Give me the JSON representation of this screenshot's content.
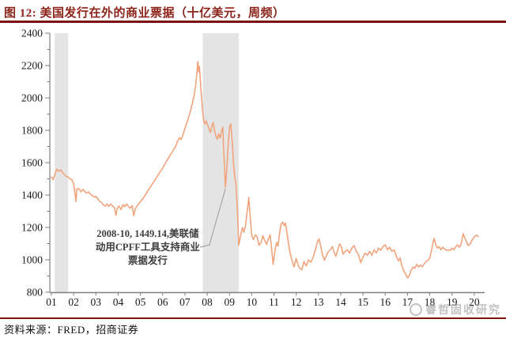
{
  "header": {
    "title": "图 12:  美国发行在外的商业票据（十亿美元，周频）"
  },
  "footer": {
    "source": "资料来源：FRED，招商证券"
  },
  "watermark": {
    "text": "睿哲固收研究"
  },
  "colors": {
    "title_red": "#8C231A",
    "rule_red": "#7C150D",
    "line": "#F1A47C",
    "recession_band": "#E4E4E4",
    "axis": "#7F7F7F",
    "tick_text": "#1A1A1A",
    "annotation_text": "#3E3E3E",
    "leader_line": "#9A9A9A"
  },
  "chart_data": {
    "type": "line",
    "title": "美国发行在外的商业票据（十亿美元，周频）",
    "xlabel": "",
    "ylabel": "",
    "ylim": [
      800,
      2400
    ],
    "xlim": [
      2001,
      2020.5
    ],
    "grid": false,
    "legend": false,
    "x_ticks": [
      "01",
      "02",
      "03",
      "04",
      "05",
      "06",
      "07",
      "08",
      "09",
      "10",
      "11",
      "12",
      "13",
      "14",
      "15",
      "16",
      "17",
      "18",
      "19",
      "20"
    ],
    "y_ticks": [
      800,
      1000,
      1200,
      1400,
      1600,
      1800,
      2000,
      2200,
      2400
    ],
    "y_minor_step": 100,
    "recession_bands": [
      [
        2001.15,
        2001.75
      ],
      [
        2007.8,
        2009.42
      ]
    ],
    "annotation": {
      "lines": [
        "2008-10, 1449.14,美联储",
        "动用CPFF工具支持商业",
        "票据发行"
      ],
      "point": [
        2008.82,
        1449.14
      ],
      "label_anchor": [
        2005.33,
        1141
      ]
    },
    "series": [
      {
        "name": "美国发行在外的商业票据",
        "points": [
          [
            2001.0,
            1512
          ],
          [
            2001.08,
            1495
          ],
          [
            2001.17,
            1535
          ],
          [
            2001.25,
            1560
          ],
          [
            2001.33,
            1548
          ],
          [
            2001.42,
            1556
          ],
          [
            2001.5,
            1540
          ],
          [
            2001.58,
            1528
          ],
          [
            2001.67,
            1515
          ],
          [
            2001.75,
            1512
          ],
          [
            2001.83,
            1500
          ],
          [
            2001.92,
            1495
          ],
          [
            2002.0,
            1468
          ],
          [
            2002.06,
            1415
          ],
          [
            2002.1,
            1360
          ],
          [
            2002.15,
            1440
          ],
          [
            2002.25,
            1438
          ],
          [
            2002.33,
            1420
          ],
          [
            2002.42,
            1435
          ],
          [
            2002.5,
            1422
          ],
          [
            2002.58,
            1412
          ],
          [
            2002.67,
            1420
          ],
          [
            2002.75,
            1405
          ],
          [
            2002.83,
            1398
          ],
          [
            2002.92,
            1388
          ],
          [
            2003.0,
            1392
          ],
          [
            2003.08,
            1378
          ],
          [
            2003.17,
            1360
          ],
          [
            2003.25,
            1355
          ],
          [
            2003.33,
            1340
          ],
          [
            2003.42,
            1332
          ],
          [
            2003.5,
            1345
          ],
          [
            2003.58,
            1330
          ],
          [
            2003.67,
            1345
          ],
          [
            2003.75,
            1332
          ],
          [
            2003.83,
            1322
          ],
          [
            2003.9,
            1275
          ],
          [
            2003.96,
            1318
          ],
          [
            2004.04,
            1332
          ],
          [
            2004.13,
            1310
          ],
          [
            2004.21,
            1340
          ],
          [
            2004.29,
            1328
          ],
          [
            2004.38,
            1345
          ],
          [
            2004.46,
            1330
          ],
          [
            2004.54,
            1318
          ],
          [
            2004.63,
            1335
          ],
          [
            2004.7,
            1272
          ],
          [
            2004.78,
            1318
          ],
          [
            2004.88,
            1338
          ],
          [
            2004.96,
            1352
          ],
          [
            2005.08,
            1372
          ],
          [
            2005.21,
            1398
          ],
          [
            2005.33,
            1425
          ],
          [
            2005.46,
            1452
          ],
          [
            2005.58,
            1478
          ],
          [
            2005.71,
            1505
          ],
          [
            2005.83,
            1532
          ],
          [
            2005.96,
            1558
          ],
          [
            2006.08,
            1588
          ],
          [
            2006.21,
            1618
          ],
          [
            2006.33,
            1645
          ],
          [
            2006.46,
            1672
          ],
          [
            2006.58,
            1700
          ],
          [
            2006.67,
            1732
          ],
          [
            2006.75,
            1755
          ],
          [
            2006.83,
            1742
          ],
          [
            2006.92,
            1775
          ],
          [
            2007.0,
            1812
          ],
          [
            2007.08,
            1845
          ],
          [
            2007.17,
            1880
          ],
          [
            2007.25,
            1920
          ],
          [
            2007.33,
            1965
          ],
          [
            2007.42,
            2020
          ],
          [
            2007.48,
            2075
          ],
          [
            2007.53,
            2140
          ],
          [
            2007.58,
            2225
          ],
          [
            2007.62,
            2160
          ],
          [
            2007.65,
            2195
          ],
          [
            2007.7,
            2090
          ],
          [
            2007.75,
            2000
          ],
          [
            2007.8,
            1915
          ],
          [
            2007.85,
            1855
          ],
          [
            2007.9,
            1838
          ],
          [
            2007.96,
            1858
          ],
          [
            2008.0,
            1842
          ],
          [
            2008.08,
            1808
          ],
          [
            2008.15,
            1788
          ],
          [
            2008.21,
            1828
          ],
          [
            2008.27,
            1848
          ],
          [
            2008.33,
            1798
          ],
          [
            2008.4,
            1762
          ],
          [
            2008.46,
            1745
          ],
          [
            2008.52,
            1778
          ],
          [
            2008.58,
            1752
          ],
          [
            2008.65,
            1795
          ],
          [
            2008.7,
            1820
          ],
          [
            2008.75,
            1650
          ],
          [
            2008.82,
            1449
          ],
          [
            2008.88,
            1560
          ],
          [
            2008.94,
            1700
          ],
          [
            2009.0,
            1820
          ],
          [
            2009.06,
            1840
          ],
          [
            2009.12,
            1740
          ],
          [
            2009.18,
            1600
          ],
          [
            2009.24,
            1510
          ],
          [
            2009.3,
            1460
          ],
          [
            2009.36,
            1300
          ],
          [
            2009.42,
            1090
          ],
          [
            2009.5,
            1150
          ],
          [
            2009.58,
            1200
          ],
          [
            2009.65,
            1170
          ],
          [
            2009.72,
            1210
          ],
          [
            2009.8,
            1300
          ],
          [
            2009.87,
            1385
          ],
          [
            2009.93,
            1270
          ],
          [
            2010.0,
            1150
          ],
          [
            2010.08,
            1125
          ],
          [
            2010.17,
            1155
          ],
          [
            2010.25,
            1140
          ],
          [
            2010.33,
            1090
          ],
          [
            2010.42,
            1105
          ],
          [
            2010.5,
            1150
          ],
          [
            2010.58,
            1120
          ],
          [
            2010.67,
            1095
          ],
          [
            2010.75,
            1130
          ],
          [
            2010.83,
            1155
          ],
          [
            2010.9,
            1060
          ],
          [
            2010.96,
            972
          ],
          [
            2011.05,
            1060
          ],
          [
            2011.12,
            1108
          ],
          [
            2011.18,
            1085
          ],
          [
            2011.25,
            1160
          ],
          [
            2011.33,
            1225
          ],
          [
            2011.4,
            1232
          ],
          [
            2011.46,
            1210
          ],
          [
            2011.52,
            1228
          ],
          [
            2011.6,
            1150
          ],
          [
            2011.7,
            1060
          ],
          [
            2011.8,
            1000
          ],
          [
            2011.9,
            956
          ],
          [
            2012.0,
            1008
          ],
          [
            2012.08,
            970
          ],
          [
            2012.15,
            950
          ],
          [
            2012.25,
            938
          ],
          [
            2012.35,
            990
          ],
          [
            2012.45,
            962
          ],
          [
            2012.55,
            1000
          ],
          [
            2012.65,
            985
          ],
          [
            2012.75,
            1012
          ],
          [
            2012.85,
            1055
          ],
          [
            2012.95,
            1110
          ],
          [
            2013.02,
            1130
          ],
          [
            2013.1,
            1085
          ],
          [
            2013.2,
            1020
          ],
          [
            2013.27,
            998
          ],
          [
            2013.35,
            1025
          ],
          [
            2013.45,
            1052
          ],
          [
            2013.55,
            1065
          ],
          [
            2013.63,
            1082
          ],
          [
            2013.7,
            1048
          ],
          [
            2013.78,
            1022
          ],
          [
            2013.87,
            1062
          ],
          [
            2013.95,
            1098
          ],
          [
            2014.03,
            1082
          ],
          [
            2014.1,
            1035
          ],
          [
            2014.2,
            1052
          ],
          [
            2014.3,
            1062
          ],
          [
            2014.4,
            1042
          ],
          [
            2014.5,
            1072
          ],
          [
            2014.6,
            1088
          ],
          [
            2014.7,
            1052
          ],
          [
            2014.8,
            1032
          ],
          [
            2014.9,
            982
          ],
          [
            2015.0,
            1015
          ],
          [
            2015.1,
            1042
          ],
          [
            2015.2,
            1028
          ],
          [
            2015.3,
            1052
          ],
          [
            2015.4,
            1028
          ],
          [
            2015.5,
            1062
          ],
          [
            2015.6,
            1042
          ],
          [
            2015.7,
            1072
          ],
          [
            2015.8,
            1058
          ],
          [
            2015.9,
            1082
          ],
          [
            2016.0,
            1092
          ],
          [
            2016.1,
            1062
          ],
          [
            2016.2,
            1078
          ],
          [
            2016.3,
            1052
          ],
          [
            2016.4,
            1062
          ],
          [
            2016.5,
            1022
          ],
          [
            2016.6,
            992
          ],
          [
            2016.67,
            1012
          ],
          [
            2016.75,
            962
          ],
          [
            2016.83,
            932
          ],
          [
            2016.92,
            912
          ],
          [
            2017.0,
            888
          ],
          [
            2017.08,
            902
          ],
          [
            2017.17,
            938
          ],
          [
            2017.25,
            955
          ],
          [
            2017.33,
            948
          ],
          [
            2017.42,
            972
          ],
          [
            2017.5,
            955
          ],
          [
            2017.58,
            968
          ],
          [
            2017.67,
            958
          ],
          [
            2017.75,
            975
          ],
          [
            2017.83,
            988
          ],
          [
            2017.92,
            998
          ],
          [
            2018.0,
            1008
          ],
          [
            2018.08,
            1058
          ],
          [
            2018.15,
            1108
          ],
          [
            2018.2,
            1132
          ],
          [
            2018.27,
            1092
          ],
          [
            2018.35,
            1072
          ],
          [
            2018.42,
            1082
          ],
          [
            2018.5,
            1062
          ],
          [
            2018.58,
            1078
          ],
          [
            2018.67,
            1068
          ],
          [
            2018.75,
            1058
          ],
          [
            2018.83,
            1062
          ],
          [
            2018.92,
            1058
          ],
          [
            2019.0,
            1072
          ],
          [
            2019.08,
            1062
          ],
          [
            2019.17,
            1082
          ],
          [
            2019.25,
            1092
          ],
          [
            2019.33,
            1078
          ],
          [
            2019.42,
            1102
          ],
          [
            2019.5,
            1162
          ],
          [
            2019.57,
            1138
          ],
          [
            2019.65,
            1112
          ],
          [
            2019.73,
            1088
          ],
          [
            2019.82,
            1098
          ],
          [
            2019.9,
            1122
          ],
          [
            2020.0,
            1142
          ],
          [
            2020.1,
            1152
          ],
          [
            2020.17,
            1145
          ]
        ]
      }
    ]
  }
}
